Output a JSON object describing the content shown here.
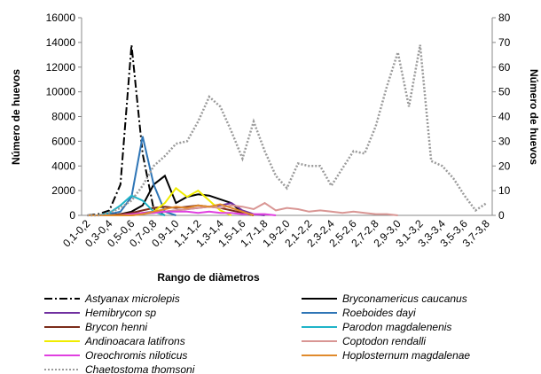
{
  "chart_data": {
    "type": "line",
    "x_label": "Rango de diàmetros",
    "y_label": "Número de huevos",
    "y2_label": "Número de huevos",
    "categories": [
      "0,1-0,2",
      null,
      "0,3-0,4",
      null,
      "0,5-0,6",
      null,
      "0,7-0,8",
      null,
      "0,9-1,0",
      null,
      "1,1-1,2",
      null,
      "1,3-1,4",
      null,
      "1,5-1,6",
      null,
      "1,7-1,8",
      null,
      "1,9-2,0",
      null,
      "2,1-2,2",
      null,
      "2,3-2,4",
      null,
      "2,5-2,6",
      null,
      "2,7-2,8",
      null,
      "2,9-3,0",
      null,
      "3,1-3,2",
      null,
      "3,3-3,4",
      null,
      "3,5-3,6",
      null,
      "3,7-3,8"
    ],
    "ylim": [
      0,
      16000
    ],
    "yticks": [
      0,
      2000,
      4000,
      6000,
      8000,
      10000,
      12000,
      14000,
      16000
    ],
    "y2lim": [
      0,
      80
    ],
    "y2ticks": [
      0,
      10,
      20,
      30,
      40,
      50,
      60,
      70,
      80
    ],
    "series": [
      {
        "name": "Astyanax microlepis",
        "color": "#000000",
        "line_style": "dashdot",
        "values": [
          0,
          100,
          400,
          2500,
          13800,
          5000,
          500,
          0,
          null,
          null,
          null,
          null,
          null,
          null,
          null,
          null,
          null,
          null,
          null,
          null,
          null,
          null,
          null,
          null,
          null,
          null,
          null,
          null,
          null,
          null,
          null,
          null,
          null,
          null,
          null,
          null,
          null
        ]
      },
      {
        "name": "Bryconamericus caucanus",
        "color": "#000000",
        "line_style": "solid",
        "values": [
          0,
          0,
          0,
          100,
          300,
          800,
          2500,
          3200,
          1000,
          1500,
          1700,
          1600,
          1300,
          1000,
          200,
          0,
          null,
          null,
          null,
          null,
          null,
          null,
          null,
          null,
          null,
          null,
          null,
          null,
          null,
          null,
          null,
          null,
          null,
          null,
          null,
          null,
          null
        ]
      },
      {
        "name": "Hemibrycon sp",
        "color": "#7030a0",
        "line_style": "solid",
        "values": [
          0,
          0,
          0,
          50,
          100,
          200,
          300,
          300,
          400,
          500,
          600,
          700,
          800,
          1000,
          400,
          100,
          0,
          null,
          null,
          null,
          null,
          null,
          null,
          null,
          null,
          null,
          null,
          null,
          null,
          null,
          null,
          null,
          null,
          null,
          null,
          null,
          null
        ]
      },
      {
        "name": "Roeboides dayi",
        "color": "#2e75b6",
        "line_style": "solid",
        "values": [
          0,
          0,
          100,
          300,
          1500,
          6400,
          2500,
          300,
          0,
          null,
          null,
          null,
          null,
          null,
          null,
          null,
          null,
          null,
          null,
          null,
          null,
          null,
          null,
          null,
          null,
          null,
          null,
          null,
          null,
          null,
          null,
          null,
          null,
          null,
          null,
          null,
          null
        ]
      },
      {
        "name": "Brycon henni",
        "color": "#7b2c1a",
        "line_style": "solid",
        "values": [
          0,
          0,
          0,
          100,
          200,
          400,
          600,
          700,
          600,
          700,
          800,
          700,
          600,
          400,
          200,
          0,
          null,
          null,
          null,
          null,
          null,
          null,
          null,
          null,
          null,
          null,
          null,
          null,
          null,
          null,
          null,
          null,
          null,
          null,
          null,
          null,
          null
        ]
      },
      {
        "name": "Parodon magdalenenis",
        "color": "#1fb4c8",
        "line_style": "solid",
        "values": [
          0,
          0,
          200,
          800,
          1600,
          1200,
          300,
          0,
          null,
          null,
          null,
          null,
          null,
          null,
          null,
          null,
          null,
          null,
          null,
          null,
          null,
          null,
          null,
          null,
          null,
          null,
          null,
          null,
          null,
          null,
          null,
          null,
          null,
          null,
          null,
          null,
          null
        ]
      },
      {
        "name": "Andinoacara latifrons",
        "color": "#f0ec00",
        "line_style": "solid",
        "values": [
          0,
          0,
          0,
          0,
          0,
          100,
          300,
          1000,
          2200,
          1500,
          2000,
          1200,
          400,
          0,
          null,
          null,
          null,
          null,
          null,
          null,
          null,
          null,
          null,
          null,
          null,
          null,
          null,
          null,
          null,
          null,
          null,
          null,
          null,
          null,
          null,
          null,
          null
        ]
      },
      {
        "name": "Coptodon rendalli",
        "color": "#d99694",
        "line_style": "solid",
        "values": [
          0,
          0,
          0,
          0,
          0,
          100,
          200,
          300,
          400,
          500,
          600,
          700,
          600,
          800,
          700,
          500,
          1000,
          400,
          600,
          500,
          300,
          400,
          300,
          200,
          300,
          200,
          100,
          100,
          0,
          null,
          null,
          null,
          null,
          null,
          null,
          null,
          null
        ]
      },
      {
        "name": "Oreochromis niloticus",
        "color": "#e040e0",
        "line_style": "solid",
        "values": [
          0,
          0,
          0,
          0,
          100,
          200,
          200,
          300,
          300,
          300,
          200,
          300,
          200,
          200,
          100,
          100,
          100,
          0,
          null,
          null,
          null,
          null,
          null,
          null,
          null,
          null,
          null,
          null,
          null,
          null,
          null,
          null,
          null,
          null,
          null,
          null,
          null
        ]
      },
      {
        "name": "Hoplosternum magdalenae",
        "color": "#e08a2c",
        "line_style": "solid",
        "values": [
          0,
          0,
          0,
          0,
          0,
          100,
          300,
          500,
          700,
          600,
          800,
          700,
          900,
          600,
          300,
          0,
          null,
          null,
          null,
          null,
          null,
          null,
          null,
          null,
          null,
          null,
          null,
          null,
          null,
          null,
          null,
          null,
          null,
          null,
          null,
          null,
          null
        ]
      },
      {
        "name": "Chaetostoma thomsoni",
        "color": "#9a9a9a",
        "line_style": "dotted",
        "axis": "y2",
        "values": [
          0,
          0,
          1,
          3,
          6,
          12,
          20,
          24,
          29,
          30,
          38,
          48,
          44,
          34,
          23,
          38,
          26,
          16,
          11,
          21,
          20,
          20,
          12,
          19,
          26,
          25,
          36,
          52,
          66,
          44,
          69,
          22,
          20,
          15,
          8,
          2,
          5
        ]
      }
    ]
  }
}
